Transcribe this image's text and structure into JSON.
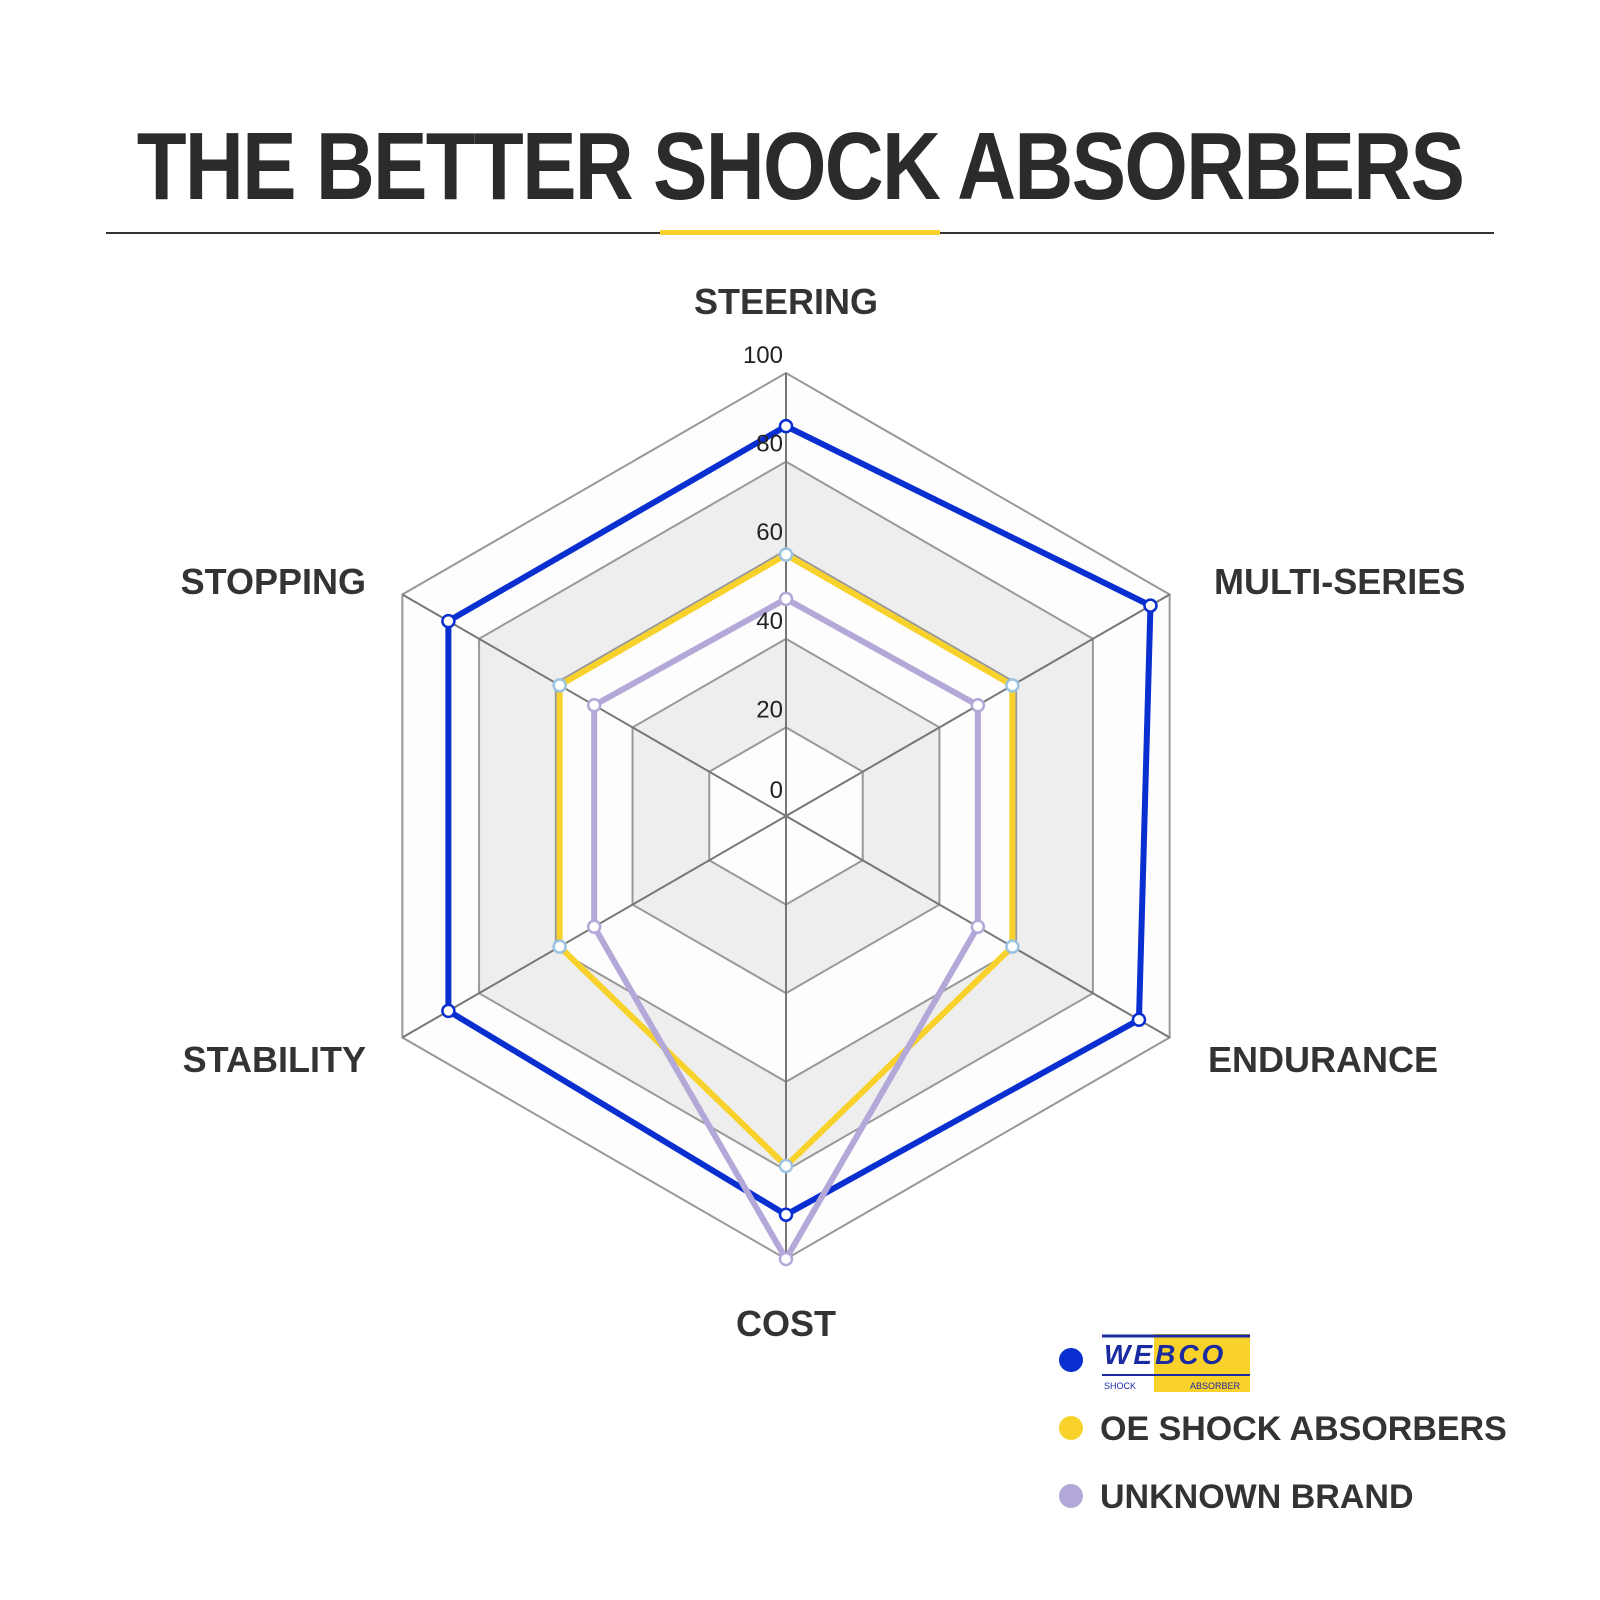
{
  "title": "THE BETTER SHOCK ABSORBERS",
  "chart_data": {
    "type": "radar",
    "categories": [
      "STEERING",
      "MULTI-SERIES",
      "ENDURANCE",
      "COST",
      "STABILITY",
      "STOPPING"
    ],
    "rlim": [
      0,
      100
    ],
    "ticks": [
      "0",
      "20",
      "40",
      "60",
      "80",
      "100"
    ],
    "legend_placement": "bottom-right",
    "series": [
      {
        "name": "WEBCO SHOCK ABSORBER",
        "color": "#0a2fd0",
        "values": [
          88,
          95,
          92,
          90,
          88,
          88
        ]
      },
      {
        "name": "OE SHOCK ABSORBERS",
        "color": "#f8d12b",
        "values": [
          59,
          59,
          59,
          79,
          59,
          59
        ]
      },
      {
        "name": "UNKNOWN BRAND",
        "color": "#b3a8d8",
        "values": [
          49,
          50,
          50,
          100,
          50,
          50
        ]
      }
    ]
  },
  "legend": {
    "logo_text": "WEBCO",
    "logo_sub_left": "SHOCK",
    "logo_sub_right": "ABSORBER"
  }
}
